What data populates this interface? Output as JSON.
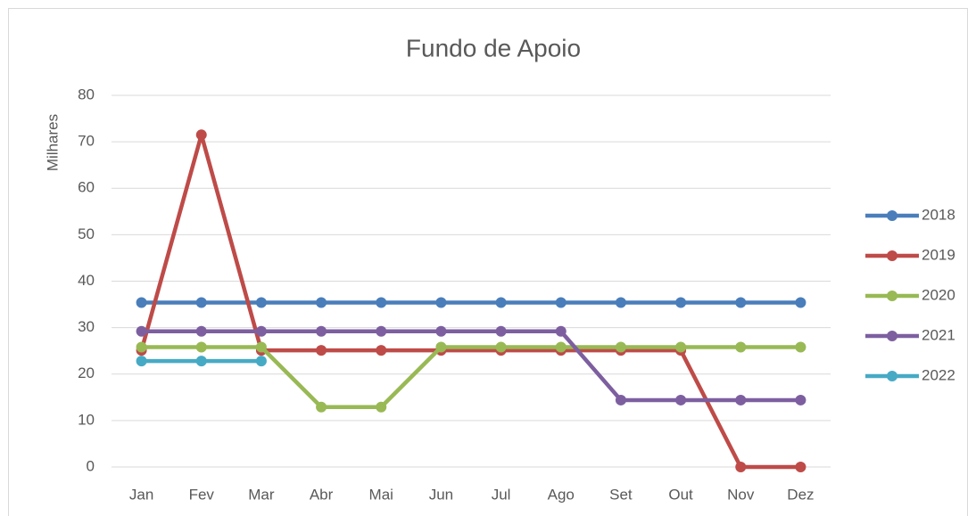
{
  "chart_data": {
    "type": "line",
    "title": "Fundo de Apoio",
    "y_label": "Milhares",
    "categories": [
      "Jan",
      "Fev",
      "Mar",
      "Abr",
      "Mai",
      "Jun",
      "Jul",
      "Ago",
      "Set",
      "Out",
      "Nov",
      "Dez"
    ],
    "series": [
      {
        "name": "2018",
        "color": "#4a7ebb",
        "values": [
          35.4,
          35.4,
          35.4,
          35.4,
          35.4,
          35.4,
          35.4,
          35.4,
          35.4,
          35.4,
          35.4,
          35.4
        ]
      },
      {
        "name": "2019",
        "color": "#be4b48",
        "values": [
          25.1,
          71.5,
          25.1,
          25.1,
          25.1,
          25.1,
          25.1,
          25.1,
          25.1,
          25.1,
          0,
          0
        ]
      },
      {
        "name": "2020",
        "color": "#98b954",
        "values": [
          25.8,
          25.8,
          25.8,
          12.9,
          12.9,
          25.8,
          25.8,
          25.8,
          25.8,
          25.8,
          25.8,
          25.8
        ]
      },
      {
        "name": "2021",
        "color": "#7d5fa0",
        "values": [
          29.2,
          29.2,
          29.2,
          29.2,
          29.2,
          29.2,
          29.2,
          29.2,
          14.4,
          14.4,
          14.4,
          14.4
        ]
      },
      {
        "name": "2022",
        "color": "#46aac5",
        "values": [
          22.8,
          22.8,
          22.8,
          null,
          null,
          null,
          null,
          null,
          null,
          null,
          null,
          null
        ]
      }
    ],
    "ylim": [
      0,
      80
    ],
    "yticks": [
      0,
      10,
      20,
      30,
      40,
      50,
      60,
      70,
      80
    ],
    "grid": true,
    "legend": "right"
  }
}
